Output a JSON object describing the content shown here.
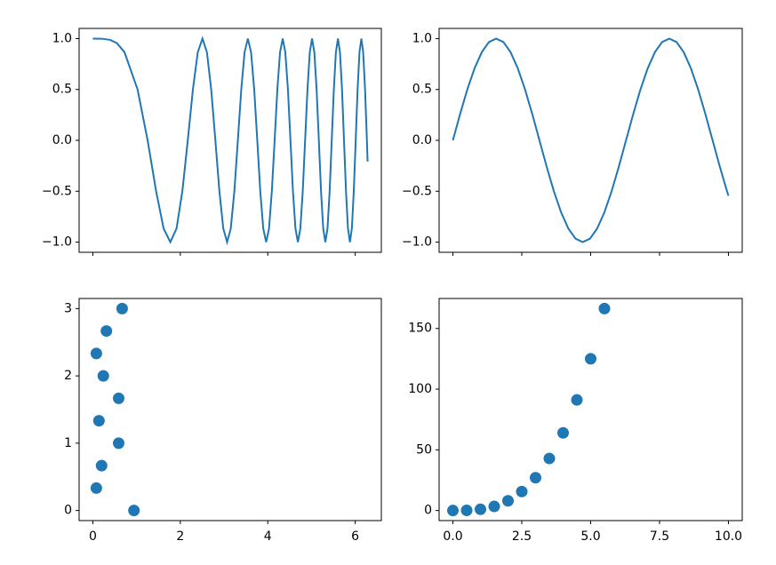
{
  "chart_data": [
    {
      "type": "line",
      "color": "#1f77b4",
      "x": [
        0,
        0.2,
        0.4,
        0.55,
        0.724,
        1.023,
        1.253,
        1.447,
        1.618,
        1.772,
        1.914,
        2.047,
        2.171,
        2.288,
        2.4,
        2.507,
        2.609,
        2.707,
        2.802,
        2.894,
        2.983,
        3.07,
        3.154,
        3.236,
        3.316,
        3.394,
        3.47,
        3.545,
        3.618,
        3.69,
        3.76,
        3.829,
        3.897,
        3.963,
        4.029,
        4.093,
        4.157,
        4.219,
        4.281,
        4.342,
        4.401,
        4.461,
        4.519,
        4.576,
        4.633,
        4.689,
        4.745,
        4.8,
        4.854,
        4.908,
        4.961,
        5.013,
        5.065,
        5.117,
        5.168,
        5.218,
        5.268,
        5.317,
        5.366,
        5.415,
        5.463,
        5.511,
        5.558,
        5.605,
        5.651,
        5.698,
        5.743,
        5.789,
        5.834,
        5.879,
        5.923,
        5.967,
        6.011,
        6.054,
        6.097,
        6.14,
        6.182,
        6.225,
        6.267,
        6.283
      ],
      "values": [
        1,
        0.999,
        0.987,
        0.955,
        0.866,
        0.5,
        0,
        -0.5,
        -0.866,
        -1,
        -0.866,
        -0.5,
        0,
        0.5,
        0.866,
        1,
        0.866,
        0.5,
        0,
        -0.5,
        -0.866,
        -1,
        -0.866,
        -0.5,
        0,
        0.5,
        0.866,
        1,
        0.866,
        0.5,
        0,
        -0.5,
        -0.866,
        -1,
        -0.866,
        -0.5,
        0,
        0.5,
        0.866,
        1,
        0.866,
        0.5,
        0,
        -0.5,
        -0.866,
        -1,
        -0.866,
        -0.5,
        0,
        0.5,
        0.866,
        1,
        0.866,
        0.5,
        0,
        -0.5,
        -0.866,
        -1,
        -0.866,
        -0.5,
        0,
        0.5,
        0.866,
        1,
        0.866,
        0.5,
        0,
        -0.5,
        -0.866,
        -1,
        -0.866,
        -0.5,
        0,
        0.5,
        0.866,
        1,
        0.866,
        0.5,
        0,
        -0.208
      ],
      "xlim": [
        -0.314,
        6.597
      ],
      "ylim": [
        -1.1,
        1.1
      ],
      "xticks": [
        0,
        2,
        4,
        6
      ],
      "show_xtick_labels": false,
      "yticks": [
        {
          "value": -1,
          "label": "−1.0"
        },
        {
          "value": -0.5,
          "label": "−0.5"
        },
        {
          "value": 0,
          "label": "0.0"
        },
        {
          "value": 0.5,
          "label": "0.5"
        },
        {
          "value": 1,
          "label": "1.0"
        }
      ]
    },
    {
      "type": "line",
      "color": "#1f77b4",
      "x": [
        0,
        0.262,
        0.524,
        0.785,
        1.047,
        1.309,
        1.571,
        1.833,
        2.094,
        2.356,
        2.618,
        2.88,
        3.142,
        3.403,
        3.665,
        3.927,
        4.189,
        4.451,
        4.712,
        4.974,
        5.236,
        5.498,
        5.76,
        6.021,
        6.283,
        6.545,
        6.807,
        7.069,
        7.33,
        7.592,
        7.854,
        8.116,
        8.378,
        8.639,
        8.901,
        9.163,
        9.425,
        9.687,
        9.948,
        10
      ],
      "values": [
        0,
        0.259,
        0.5,
        0.707,
        0.866,
        0.966,
        1,
        0.966,
        0.866,
        0.707,
        0.5,
        0.259,
        0,
        -0.259,
        -0.5,
        -0.707,
        -0.866,
        -0.966,
        -1,
        -0.966,
        -0.866,
        -0.707,
        -0.5,
        -0.259,
        0,
        0.259,
        0.5,
        0.707,
        0.866,
        0.966,
        1,
        0.966,
        0.866,
        0.707,
        0.5,
        0.259,
        0,
        -0.259,
        -0.5,
        -0.544
      ],
      "xlim": [
        -0.5,
        10.5
      ],
      "ylim": [
        -1.1,
        1.1
      ],
      "xticks": [
        0,
        2.5,
        5,
        7.5,
        10
      ],
      "show_xtick_labels": false,
      "yticks": [
        {
          "value": -1,
          "label": "−1.0"
        },
        {
          "value": -0.5,
          "label": "−0.5"
        },
        {
          "value": 0,
          "label": "0.0"
        },
        {
          "value": 0.5,
          "label": "0.5"
        },
        {
          "value": 1,
          "label": "1.0"
        }
      ]
    },
    {
      "type": "scatter",
      "color": "#1f77b4",
      "x": [
        0.94,
        0.08,
        0.2,
        0.59,
        0.14,
        0.59,
        0.24,
        0.08,
        0.31,
        0.67
      ],
      "values": [
        0,
        0.333,
        0.667,
        1,
        1.333,
        1.667,
        2,
        2.333,
        2.667,
        3
      ],
      "xlim": [
        -0.314,
        6.597
      ],
      "ylim": [
        -0.15,
        3.15
      ],
      "xticks": [
        0,
        2,
        4,
        6
      ],
      "show_xtick_labels": true,
      "yticks": [
        0,
        1,
        2,
        3
      ]
    },
    {
      "type": "scatter",
      "color": "#1f77b4",
      "x": [
        0,
        0.5,
        1,
        1.5,
        2,
        2.5,
        3,
        3.5,
        4,
        4.5,
        5,
        5.5
      ],
      "values": [
        0,
        0.125,
        1,
        3.375,
        8,
        15.625,
        27,
        42.875,
        64,
        91.125,
        125,
        166.375
      ],
      "xlim": [
        -0.5,
        10.5
      ],
      "ylim": [
        -8.3,
        174.7
      ],
      "xticks": [
        {
          "value": 0,
          "label": "0.0"
        },
        {
          "value": 2.5,
          "label": "2.5"
        },
        {
          "value": 5,
          "label": "5.0"
        },
        {
          "value": 7.5,
          "label": "7.5"
        },
        {
          "value": 10,
          "label": "10.0"
        }
      ],
      "show_xtick_labels": true,
      "yticks": [
        0,
        50,
        100,
        150
      ]
    }
  ]
}
